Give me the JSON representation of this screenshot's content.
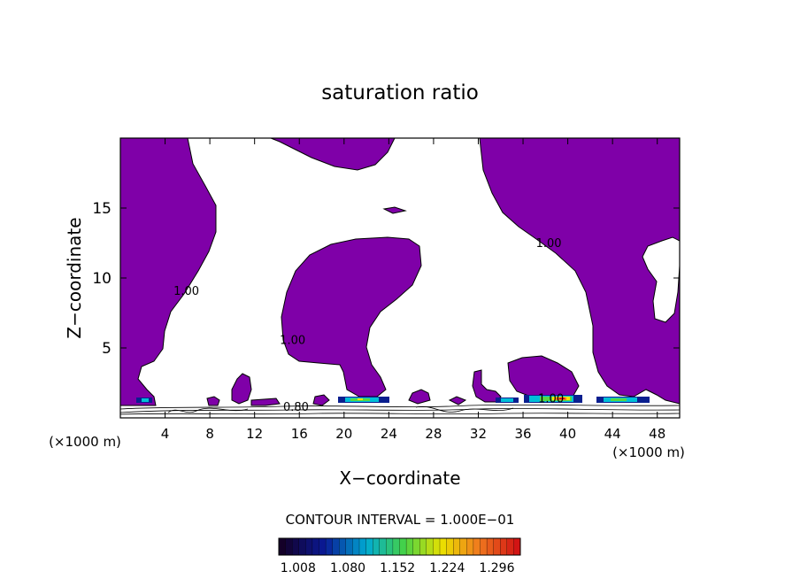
{
  "chart_data": {
    "type": "heatmap",
    "title": "saturation ratio",
    "xlabel": "X−coordinate",
    "ylabel": "Z−coordinate",
    "x_unit": "(×1000 m)",
    "z_unit": "(×1000 m)",
    "xlim": [
      0,
      50
    ],
    "ylim": [
      0,
      20
    ],
    "x_ticks": [
      4,
      8,
      12,
      16,
      20,
      24,
      28,
      32,
      36,
      40,
      44,
      48
    ],
    "y_ticks": [
      5,
      10,
      15
    ],
    "contour_labels": [
      {
        "text": "1.00",
        "x": 5.9,
        "y": 8.8
      },
      {
        "text": "1.00",
        "x": 15.4,
        "y": 5.3
      },
      {
        "text": "1.00",
        "x": 38.3,
        "y": 12.2
      },
      {
        "text": "1.00",
        "x": 38.5,
        "y": 1.1
      },
      {
        "text": "0.80",
        "x": 15.7,
        "y": 0.5
      }
    ],
    "contour_interval_text": "CONTOUR INTERVAL = 1.000E−01",
    "colorbar": {
      "tick_labels": [
        "1.008",
        "1.080",
        "1.152",
        "1.224",
        "1.296"
      ],
      "range": [
        0.98,
        1.33
      ]
    },
    "fill_color": "#7f00a8"
  }
}
